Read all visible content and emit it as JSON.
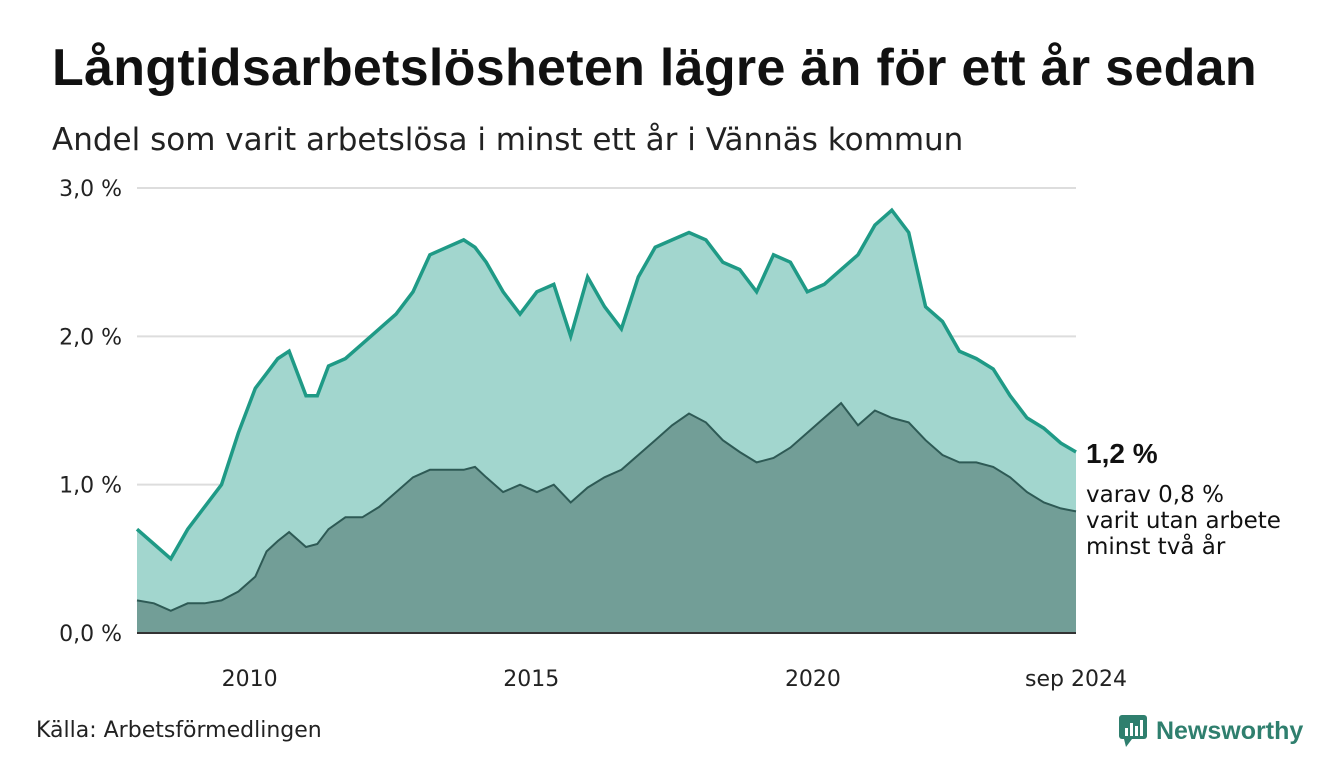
{
  "title": "Långtidsarbetslösheten lägre än för ett år sedan",
  "subtitle": "Andel som varit arbetslösa i minst ett år i Vännäs kommun",
  "source": "Källa: Arbetsförmedlingen",
  "brand": "Newsworthy",
  "colors": {
    "line_1yr": "#1f9a86",
    "area_1yr": "#a2d6ce",
    "line_2yr": "#2e5a55",
    "area_2yr": "#729e97",
    "grid": "#dddddd",
    "brand": "#2f7f6e"
  },
  "chart_data": {
    "type": "area",
    "x_ticks": [
      "2010",
      "2015",
      "2020",
      "sep 2024"
    ],
    "y_ticks": [
      "0,0 %",
      "1,0 %",
      "2,0 %",
      "3,0 %"
    ],
    "ylim": [
      0,
      3.0
    ],
    "xlim": [
      2008.0,
      2024.67
    ],
    "grid": true,
    "end_labels": {
      "main_value": "1,2 %",
      "secondary_lines": [
        "varav 0,8 %",
        "varit utan arbete",
        "minst två år"
      ]
    },
    "series": [
      {
        "key": "minst_ett_ar",
        "x": [
          2008.0,
          2008.3,
          2008.6,
          2008.9,
          2009.2,
          2009.5,
          2009.8,
          2010.1,
          2010.3,
          2010.5,
          2010.7,
          2011.0,
          2011.2,
          2011.4,
          2011.7,
          2012.0,
          2012.3,
          2012.6,
          2012.9,
          2013.2,
          2013.5,
          2013.8,
          2014.0,
          2014.2,
          2014.5,
          2014.8,
          2015.1,
          2015.4,
          2015.7,
          2016.0,
          2016.3,
          2016.6,
          2016.9,
          2017.2,
          2017.5,
          2017.8,
          2018.1,
          2018.4,
          2018.7,
          2019.0,
          2019.3,
          2019.6,
          2019.9,
          2020.2,
          2020.5,
          2020.8,
          2021.1,
          2021.4,
          2021.7,
          2022.0,
          2022.3,
          2022.6,
          2022.9,
          2023.2,
          2023.5,
          2023.8,
          2024.1,
          2024.4,
          2024.67
        ],
        "values": [
          0.7,
          0.6,
          0.5,
          0.7,
          0.85,
          1.0,
          1.35,
          1.65,
          1.75,
          1.85,
          1.9,
          1.6,
          1.6,
          1.8,
          1.85,
          1.95,
          2.05,
          2.15,
          2.3,
          2.55,
          2.6,
          2.65,
          2.6,
          2.5,
          2.3,
          2.15,
          2.3,
          2.35,
          2.0,
          2.4,
          2.2,
          2.05,
          2.4,
          2.6,
          2.65,
          2.7,
          2.65,
          2.5,
          2.45,
          2.3,
          2.55,
          2.5,
          2.3,
          2.35,
          2.45,
          2.55,
          2.75,
          2.85,
          2.7,
          2.2,
          2.1,
          1.9,
          1.85,
          1.78,
          1.6,
          1.45,
          1.38,
          1.28,
          1.22
        ]
      },
      {
        "key": "minst_tva_ar",
        "x": [
          2008.0,
          2008.3,
          2008.6,
          2008.9,
          2009.2,
          2009.5,
          2009.8,
          2010.1,
          2010.3,
          2010.5,
          2010.7,
          2011.0,
          2011.2,
          2011.4,
          2011.7,
          2012.0,
          2012.3,
          2012.6,
          2012.9,
          2013.2,
          2013.5,
          2013.8,
          2014.0,
          2014.2,
          2014.5,
          2014.8,
          2015.1,
          2015.4,
          2015.7,
          2016.0,
          2016.3,
          2016.6,
          2016.9,
          2017.2,
          2017.5,
          2017.8,
          2018.1,
          2018.4,
          2018.7,
          2019.0,
          2019.3,
          2019.6,
          2019.9,
          2020.2,
          2020.5,
          2020.8,
          2021.1,
          2021.4,
          2021.7,
          2022.0,
          2022.3,
          2022.6,
          2022.9,
          2023.2,
          2023.5,
          2023.8,
          2024.1,
          2024.4,
          2024.67
        ],
        "values": [
          0.22,
          0.2,
          0.15,
          0.2,
          0.2,
          0.22,
          0.28,
          0.38,
          0.55,
          0.62,
          0.68,
          0.58,
          0.6,
          0.7,
          0.78,
          0.78,
          0.85,
          0.95,
          1.05,
          1.1,
          1.1,
          1.1,
          1.12,
          1.05,
          0.95,
          1.0,
          0.95,
          1.0,
          0.88,
          0.98,
          1.05,
          1.1,
          1.2,
          1.3,
          1.4,
          1.48,
          1.42,
          1.3,
          1.22,
          1.15,
          1.18,
          1.25,
          1.35,
          1.45,
          1.55,
          1.4,
          1.5,
          1.45,
          1.42,
          1.3,
          1.2,
          1.15,
          1.15,
          1.12,
          1.05,
          0.95,
          0.88,
          0.84,
          0.82
        ]
      }
    ]
  }
}
